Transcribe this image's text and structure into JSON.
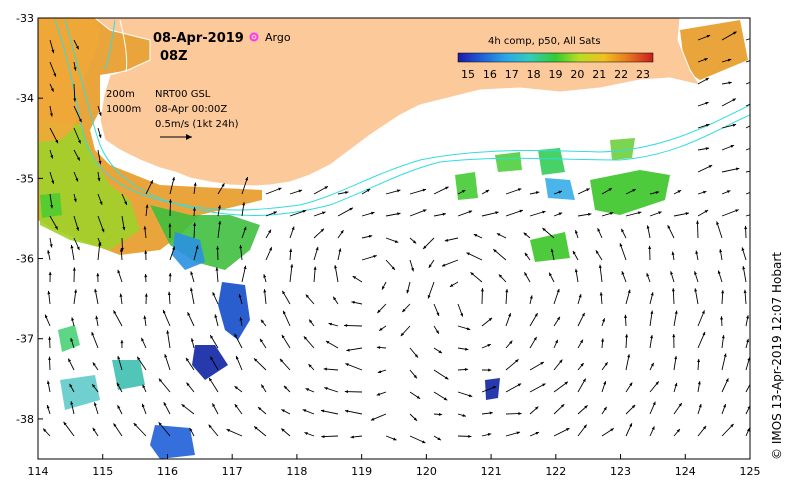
{
  "map": {
    "date": "08-Apr-2019",
    "hour": "08Z",
    "argo_label": "Argo",
    "argo_color": "#ff33ff",
    "depth_200": "200m",
    "depth_1000": "1000m",
    "product": "NRT00 GSL",
    "product_time": "08-Apr 00:00Z",
    "scale_arrow_label": "0.5m/s (1kt 24h)",
    "colorbar_title": "4h comp, p50, All Sats",
    "colorbar_ticks": [
      "15",
      "16",
      "17",
      "18",
      "19",
      "20",
      "21",
      "22",
      "23"
    ],
    "credit": "© IMOS 13-Apr-2019 12:07 Hobart",
    "x_ticks": [
      "114",
      "115",
      "116",
      "117",
      "118",
      "119",
      "120",
      "121",
      "122",
      "123",
      "124",
      "125"
    ],
    "y_ticks": [
      "-33",
      "-34",
      "-35",
      "-36",
      "-37",
      "-38"
    ],
    "lon_range": [
      114,
      125
    ],
    "lat_range": [
      -38.5,
      -33
    ],
    "colors": {
      "land": "#fcc99b",
      "isobath": "#33dddd",
      "coast": "#ffffff"
    }
  }
}
